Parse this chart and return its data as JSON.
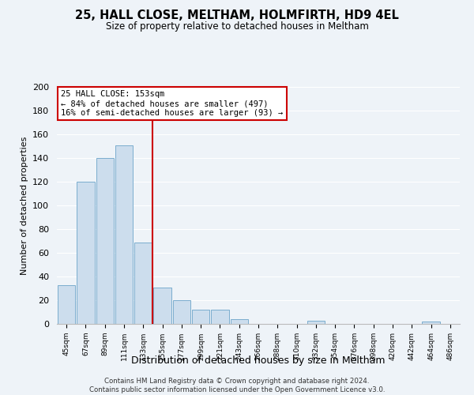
{
  "title": "25, HALL CLOSE, MELTHAM, HOLMFIRTH, HD9 4EL",
  "subtitle": "Size of property relative to detached houses in Meltham",
  "xlabel": "Distribution of detached houses by size in Meltham",
  "ylabel": "Number of detached properties",
  "bin_labels": [
    "45sqm",
    "67sqm",
    "89sqm",
    "111sqm",
    "133sqm",
    "155sqm",
    "177sqm",
    "199sqm",
    "221sqm",
    "243sqm",
    "266sqm",
    "288sqm",
    "310sqm",
    "332sqm",
    "354sqm",
    "376sqm",
    "398sqm",
    "420sqm",
    "442sqm",
    "464sqm",
    "486sqm"
  ],
  "bar_values": [
    33,
    120,
    140,
    151,
    69,
    31,
    20,
    12,
    12,
    4,
    0,
    0,
    0,
    3,
    0,
    0,
    0,
    0,
    0,
    2,
    0
  ],
  "bar_color": "#ccdded",
  "bar_edge_color": "#7aadce",
  "vline_x": 4.5,
  "vline_color": "#cc0000",
  "ylim": [
    0,
    200
  ],
  "yticks": [
    0,
    20,
    40,
    60,
    80,
    100,
    120,
    140,
    160,
    180,
    200
  ],
  "annotation_title": "25 HALL CLOSE: 153sqm",
  "annotation_line1": "← 84% of detached houses are smaller (497)",
  "annotation_line2": "16% of semi-detached houses are larger (93) →",
  "annotation_box_color": "#ffffff",
  "annotation_box_edge": "#cc0000",
  "footer_line1": "Contains HM Land Registry data © Crown copyright and database right 2024.",
  "footer_line2": "Contains public sector information licensed under the Open Government Licence v3.0.",
  "background_color": "#eef3f8",
  "plot_background": "#eef3f8",
  "grid_color": "#ffffff"
}
